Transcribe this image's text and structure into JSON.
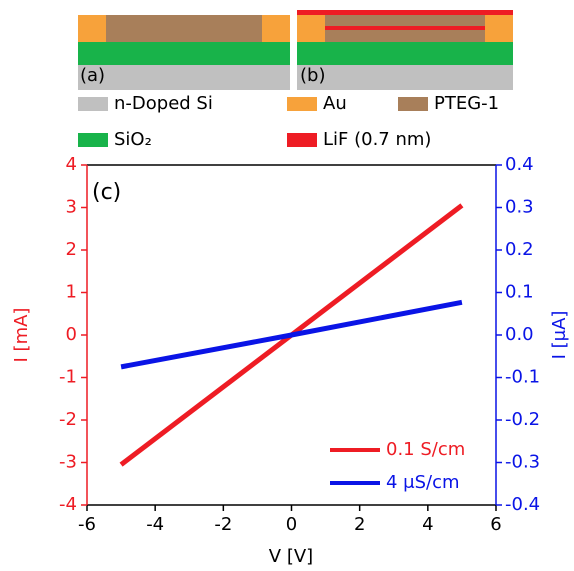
{
  "schematic": {
    "panels": [
      "(a)",
      "(b)"
    ],
    "legend": [
      {
        "label": "n-Doped Si",
        "color": "#c0c0c0"
      },
      {
        "label": "Au",
        "color": "#f7a23b"
      },
      {
        "label": "PTEG-1",
        "color": "#a87f5a"
      },
      {
        "label": "SiO₂",
        "color": "#18b34a"
      },
      {
        "label": "LiF (0.7 nm)",
        "color": "#ee1c24"
      }
    ]
  },
  "chart_data": {
    "type": "line",
    "annotation": "(c)",
    "xlabel": "V [V]",
    "ylabel": "I [mA]",
    "y2label": "I [μA]",
    "x": [
      -5,
      0,
      5
    ],
    "series": [
      {
        "name": "0.1 S/cm",
        "color": "#ee1c24",
        "values": [
          -3.05,
          0,
          3.05
        ]
      },
      {
        "name": "4 μS/cm",
        "color": "#0a14e6",
        "values": [
          -0.075,
          0,
          0.077
        ],
        "axis": "y2"
      }
    ],
    "xlim": [
      -6,
      6
    ],
    "xticks": [
      -6,
      -4,
      -2,
      0,
      2,
      4,
      6
    ],
    "ylim": [
      -4,
      4
    ],
    "yticks": [
      -4,
      -3,
      -2,
      -1,
      0,
      1,
      2,
      3,
      4
    ],
    "y2lim": [
      -0.4,
      0.4
    ],
    "y2ticks": [
      -0.4,
      -0.3,
      -0.2,
      -0.1,
      {
        "value": 0,
        "label": "0.0"
      },
      0.1,
      0.2,
      0.3,
      0.4
    ],
    "legend": "lower right"
  }
}
